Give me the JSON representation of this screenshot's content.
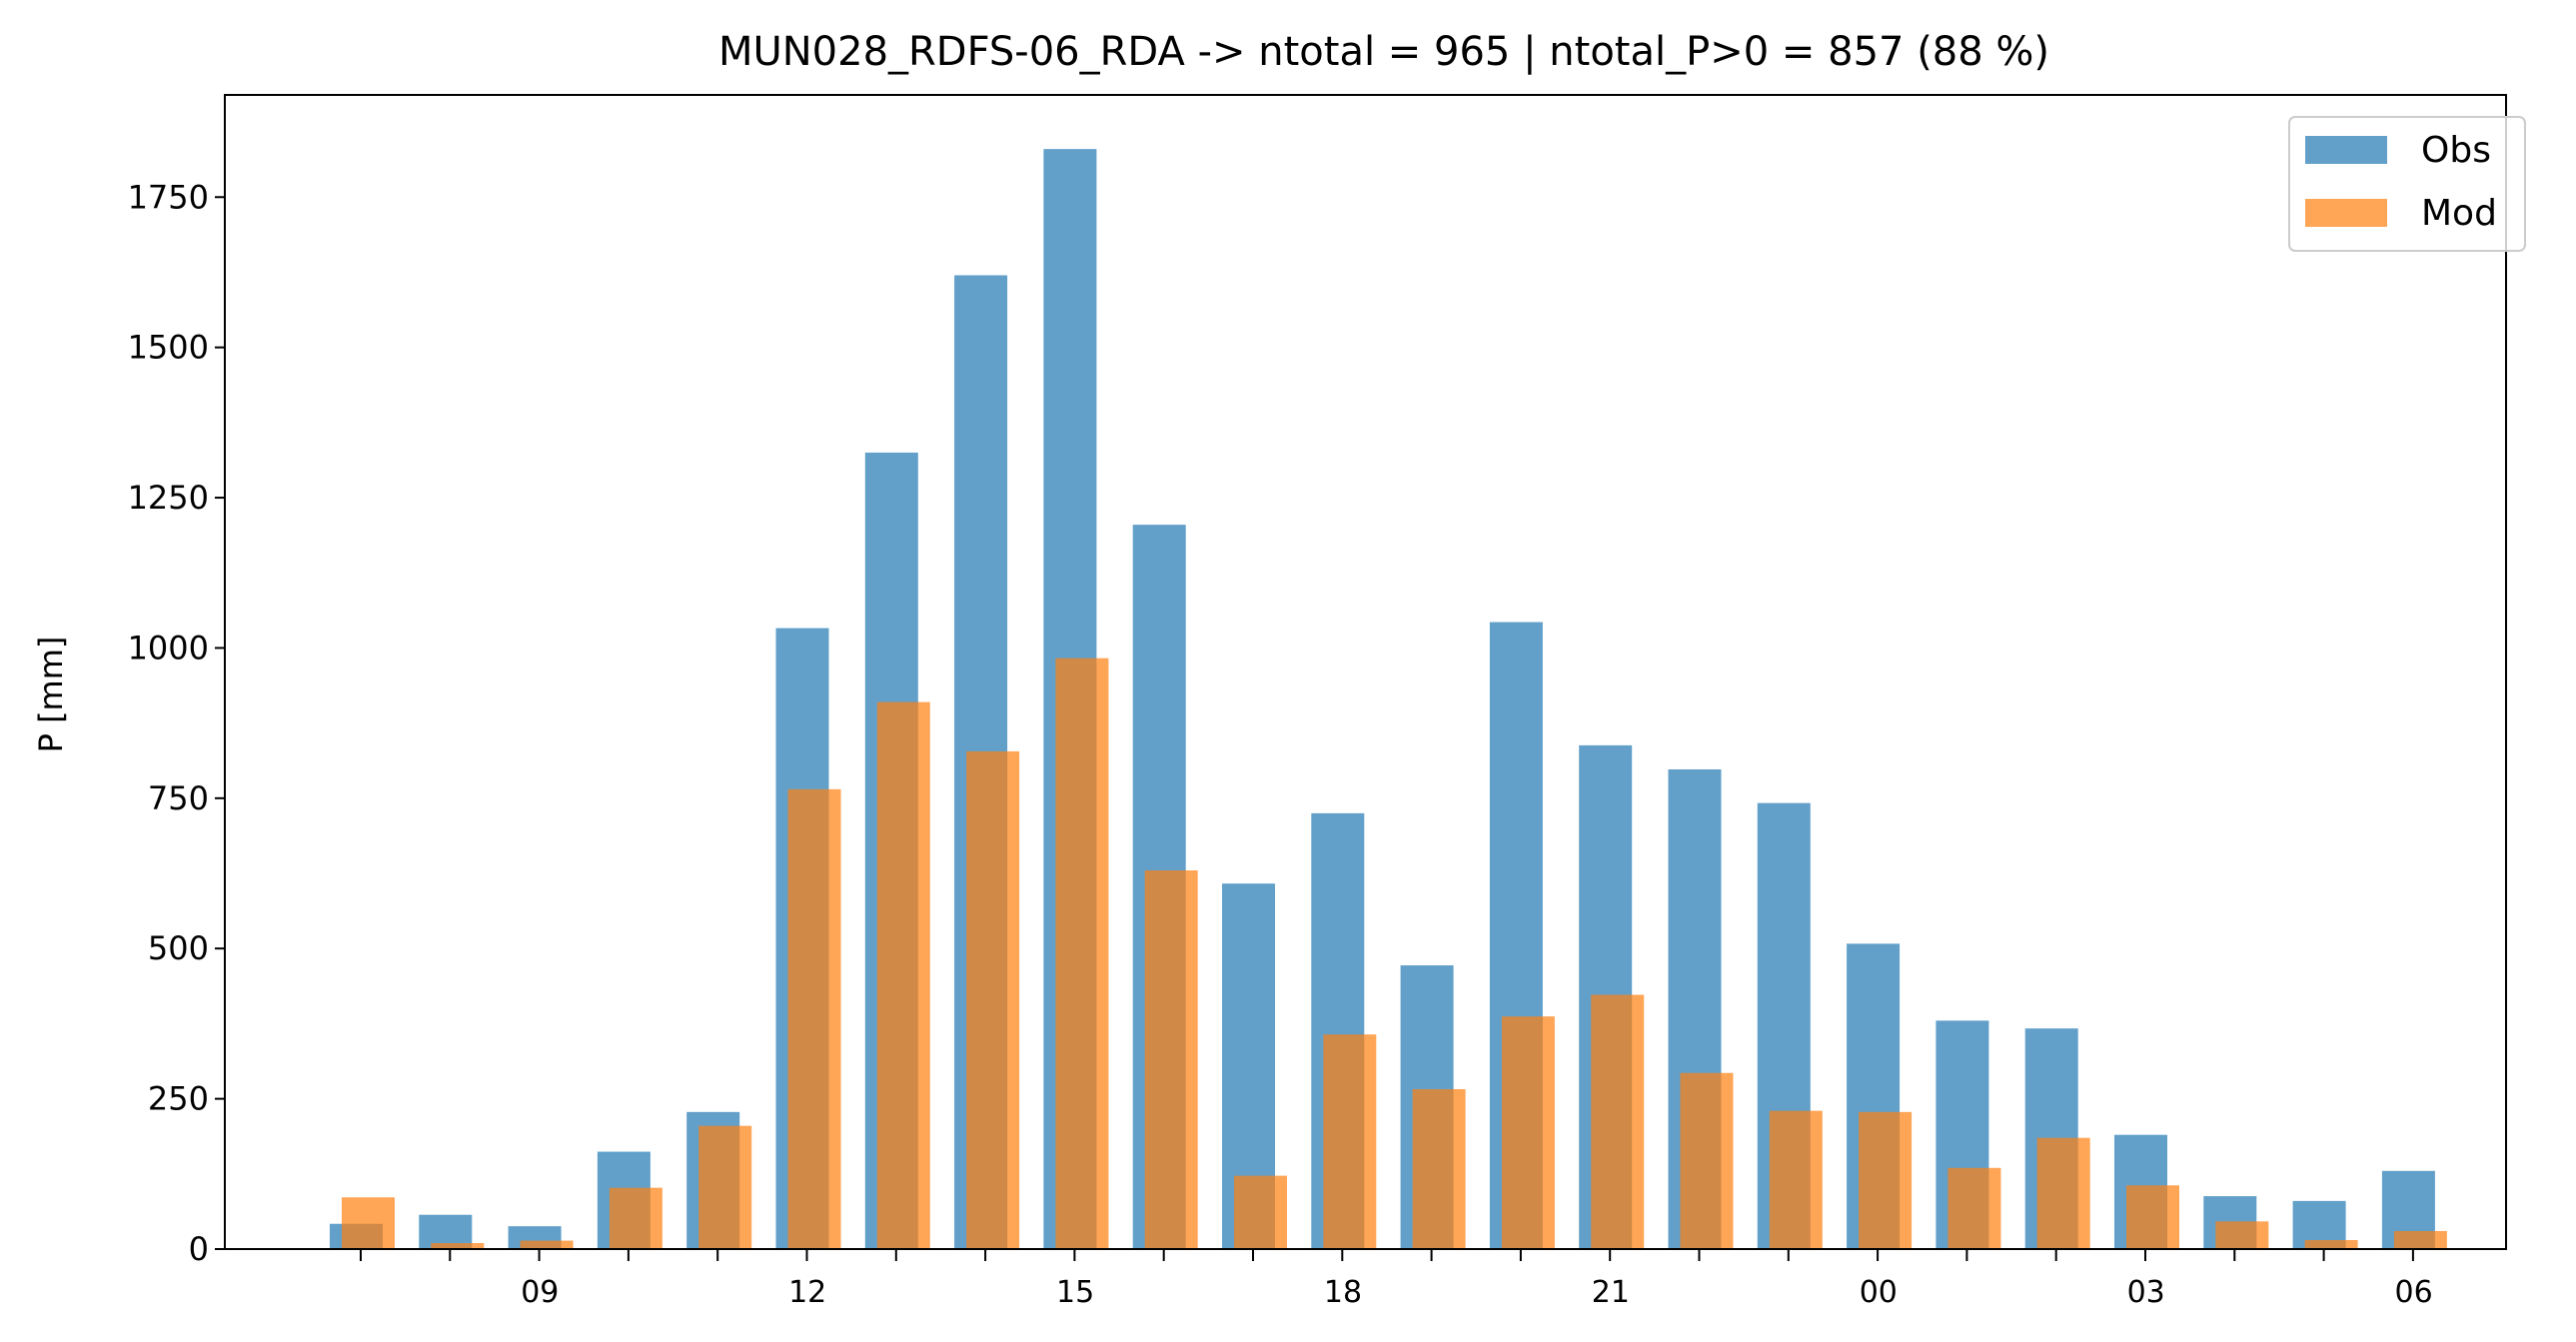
{
  "chart_data": {
    "type": "bar",
    "title": "MUN028_RDFS-06_RDA -> ntotal = 965 | ntotal_P>0 = 857 (88 %)",
    "xlabel": "",
    "ylabel": "P [mm]",
    "ylim": [
      0,
      1920
    ],
    "yticks": [
      0,
      250,
      500,
      750,
      1000,
      1250,
      1500,
      1750
    ],
    "ytick_labels": [
      "0",
      "250",
      "500",
      "750",
      "1000",
      "1250",
      "1500",
      "1750"
    ],
    "hours": [
      8,
      9,
      10,
      11,
      12,
      13,
      14,
      15,
      16,
      17,
      18,
      19,
      20,
      21,
      22,
      23,
      0,
      1,
      2,
      3,
      4,
      5,
      6,
      7
    ],
    "xtick_labels": [
      {
        "hour_index": 1,
        "label": "09"
      },
      {
        "hour_index": 4,
        "label": "12"
      },
      {
        "hour_index": 7,
        "label": "15"
      },
      {
        "hour_index": 10,
        "label": "18"
      },
      {
        "hour_index": 13,
        "label": "21"
      },
      {
        "hour_index": 16,
        "label": "00"
      },
      {
        "hour_index": 19,
        "label": "03"
      },
      {
        "hour_index": 22,
        "label": "06"
      }
    ],
    "series": [
      {
        "name": "Obs",
        "color": "#1f77b4",
        "alpha": 0.7,
        "values": [
          42,
          57,
          38,
          162,
          228,
          1033,
          1325,
          1620,
          1830,
          1205,
          608,
          725,
          472,
          1043,
          838,
          798,
          742,
          508,
          380,
          367,
          190,
          88,
          80,
          130
        ]
      },
      {
        "name": "Mod",
        "color": "#ff7f0e",
        "alpha": 0.7,
        "values": [
          86,
          10,
          14,
          102,
          205,
          765,
          910,
          828,
          983,
          630,
          122,
          357,
          266,
          387,
          423,
          293,
          230,
          228,
          135,
          185,
          106,
          46,
          15,
          30
        ]
      }
    ],
    "legend_position": "top-right",
    "grid": false
  }
}
